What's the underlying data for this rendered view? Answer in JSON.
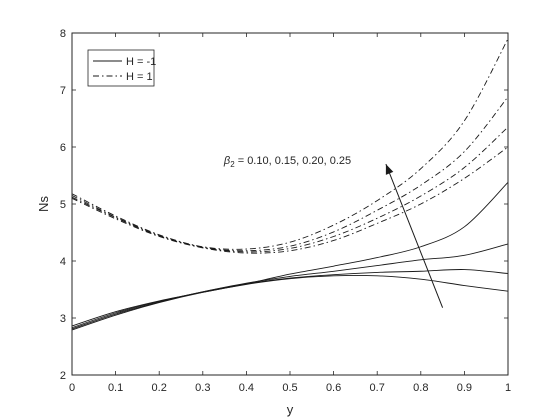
{
  "chart_data": {
    "type": "line",
    "xlabel": "y",
    "ylabel": "Ns",
    "xlim": [
      0,
      1
    ],
    "ylim": [
      2,
      8
    ],
    "xticks": [
      0,
      0.1,
      0.2,
      0.3,
      0.4,
      0.5,
      0.6,
      0.7,
      0.8,
      0.9,
      1
    ],
    "xtick_labels": [
      "0",
      "0.1",
      "0.2",
      "0.3",
      "0.4",
      "0.5",
      "0.6",
      "0.7",
      "0.8",
      "0.9",
      "1"
    ],
    "yticks": [
      2,
      3,
      4,
      5,
      6,
      7,
      8
    ],
    "ytick_labels": [
      "2",
      "3",
      "4",
      "5",
      "6",
      "7",
      "8"
    ],
    "grid": false,
    "legend": {
      "position": "top-left",
      "entries": [
        {
          "label": "H = -1",
          "style": "solid"
        },
        {
          "label": "H = 1",
          "style": "dashdot"
        }
      ]
    },
    "annotation": {
      "prefix": "β",
      "subscript": "2",
      "text": " = 0.10, 0.15, 0.20, 0.25",
      "arrow_from": [
        0.85,
        3.18
      ],
      "arrow_to": [
        0.72,
        5.7
      ]
    },
    "x": [
      0,
      0.1,
      0.2,
      0.3,
      0.4,
      0.5,
      0.6,
      0.7,
      0.8,
      0.9,
      1.0
    ],
    "series": [
      {
        "group": "H = -1",
        "style": "solid",
        "values": [
          2.79,
          3.05,
          3.27,
          3.45,
          3.59,
          3.69,
          3.74,
          3.74,
          3.68,
          3.57,
          3.47
        ]
      },
      {
        "group": "H = -1",
        "style": "solid",
        "values": [
          2.81,
          3.07,
          3.28,
          3.46,
          3.6,
          3.7,
          3.76,
          3.8,
          3.82,
          3.85,
          3.78
        ]
      },
      {
        "group": "H = -1",
        "style": "solid",
        "values": [
          2.83,
          3.09,
          3.29,
          3.46,
          3.61,
          3.73,
          3.82,
          3.92,
          4.02,
          4.1,
          4.3
        ]
      },
      {
        "group": "H = -1",
        "style": "solid",
        "values": [
          2.86,
          3.11,
          3.3,
          3.45,
          3.6,
          3.77,
          3.91,
          4.06,
          4.25,
          4.6,
          5.38
        ]
      },
      {
        "group": "H = 1",
        "style": "dashdot",
        "values": [
          5.1,
          4.74,
          4.43,
          4.23,
          4.14,
          4.18,
          4.36,
          4.66,
          5.0,
          5.45,
          6.0
        ]
      },
      {
        "group": "H = 1",
        "style": "dashdot",
        "values": [
          5.12,
          4.76,
          4.44,
          4.24,
          4.16,
          4.22,
          4.43,
          4.75,
          5.14,
          5.64,
          6.35
        ]
      },
      {
        "group": "H = 1",
        "style": "dashdot",
        "values": [
          5.15,
          4.77,
          4.45,
          4.24,
          4.18,
          4.26,
          4.51,
          4.89,
          5.33,
          5.92,
          6.88
        ]
      },
      {
        "group": "H = 1",
        "style": "dashdot",
        "values": [
          5.18,
          4.79,
          4.46,
          4.25,
          4.21,
          4.33,
          4.63,
          5.06,
          5.62,
          6.46,
          7.9
        ]
      }
    ]
  }
}
